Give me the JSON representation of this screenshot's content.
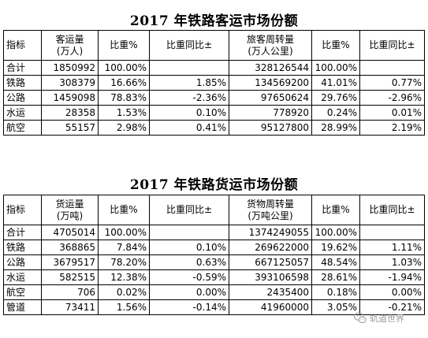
{
  "passenger": {
    "title": "2017 年铁路客运市场份额",
    "headers": [
      "指标",
      "客运量",
      "(万人)",
      "比重%",
      "比重同比±",
      "旅客周转量",
      "(万人公里)",
      "比重%",
      "比重同比±"
    ],
    "rows": [
      [
        "合计",
        "1850992",
        "100.00%",
        "",
        "328126544",
        "100.00%",
        ""
      ],
      [
        "铁路",
        "308379",
        "16.66%",
        "1.85%",
        "134569200",
        "41.01%",
        "0.77%"
      ],
      [
        "公路",
        "1459098",
        "78.83%",
        "-2.36%",
        "97650624",
        "29.76%",
        "-2.96%"
      ],
      [
        "水运",
        "28358",
        "1.53%",
        "0.10%",
        "778920",
        "0.24%",
        "0.01%"
      ],
      [
        "航空",
        "55157",
        "2.98%",
        "0.41%",
        "95127800",
        "28.99%",
        "2.19%"
      ]
    ]
  },
  "freight": {
    "title": "2017 年铁路货运市场份额",
    "headers": [
      "指标",
      "货运量",
      "(万吨)",
      "比重%",
      "比重同比±",
      "货物周转量",
      "(万吨公里)",
      "比重%",
      "比重同比±"
    ],
    "rows": [
      [
        "合计",
        "4705014",
        "100.00%",
        "",
        "1374249055",
        "100.00%",
        ""
      ],
      [
        "铁路",
        "368865",
        "7.84%",
        "0.10%",
        "269622000",
        "19.62%",
        "1.11%"
      ],
      [
        "公路",
        "3679517",
        "78.20%",
        "0.63%",
        "667125057",
        "48.54%",
        "1.03%"
      ],
      [
        "水运",
        "582515",
        "12.38%",
        "-0.59%",
        "393106598",
        "28.61%",
        "-1.94%"
      ],
      [
        "航空",
        "706",
        "0.02%",
        "0.00%",
        "2435400",
        "0.18%",
        "0.00%"
      ],
      [
        "管道",
        "73411",
        "1.56%",
        "-0.14%",
        "41960000",
        "3.05%",
        "-0.21%"
      ]
    ]
  },
  "watermark": {
    "text": "轨道世界",
    "icon": "wechat-icon"
  }
}
